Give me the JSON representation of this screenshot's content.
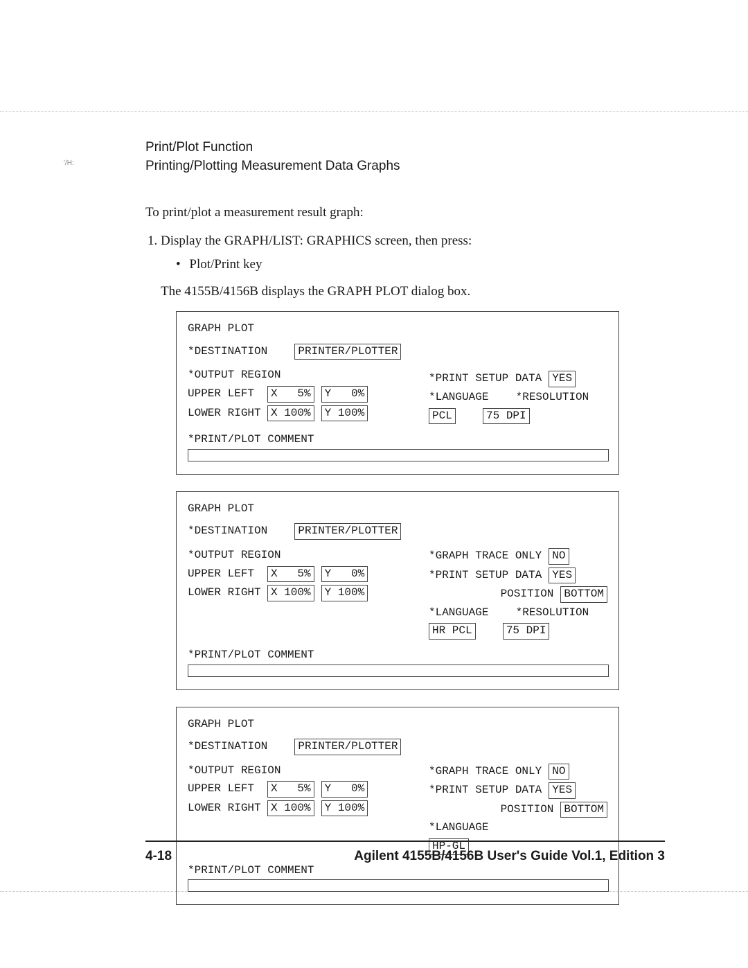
{
  "header": {
    "line1": "Print/Plot Function",
    "line2": "Printing/Plotting Measurement Data Graphs"
  },
  "intro": "To print/plot a measurement result graph:",
  "step1": "Display the GRAPH/LIST: GRAPHICS screen, then press:",
  "bullet1": "Plot/Print key",
  "after_bullet": "The 4155B/4156B displays the GRAPH PLOT dialog box.",
  "labels": {
    "dialog_title": "GRAPH PLOT",
    "destination": "*DESTINATION",
    "output_region": "*OUTPUT REGION",
    "upper_left": "UPPER LEFT",
    "lower_right": "LOWER RIGHT",
    "print_plot_comment": "*PRINT/PLOT COMMENT",
    "graph_trace_only": "*GRAPH TRACE ONLY",
    "print_setup_data": "*PRINT SETUP DATA",
    "position": "POSITION",
    "language": "*LANGUAGE",
    "resolution": "*RESOLUTION"
  },
  "dialogs": [
    {
      "destination": "PRINTER/PLOTTER",
      "ul_x": "X   5%",
      "ul_y": "Y   0%",
      "lr_x": "X 100%",
      "lr_y": "Y 100%",
      "trace_only": null,
      "setup_data": "YES",
      "position": null,
      "language": "PCL",
      "resolution": "75 DPI"
    },
    {
      "destination": "PRINTER/PLOTTER",
      "ul_x": "X   5%",
      "ul_y": "Y   0%",
      "lr_x": "X 100%",
      "lr_y": "Y 100%",
      "trace_only": "NO",
      "setup_data": "YES",
      "position": "BOTTOM",
      "language": "HR PCL",
      "resolution": "75 DPI"
    },
    {
      "destination": "PRINTER/PLOTTER",
      "ul_x": "X   5%",
      "ul_y": "Y   0%",
      "lr_x": "X 100%",
      "lr_y": "Y 100%",
      "trace_only": "NO",
      "setup_data": "YES",
      "position": "BOTTOM",
      "language": "HP-GL",
      "resolution": null
    }
  ],
  "footer": {
    "page": "4-18",
    "title": "Agilent 4155B/4156B User's Guide Vol.1, Edition 3"
  },
  "margin_mark": "'/H:"
}
